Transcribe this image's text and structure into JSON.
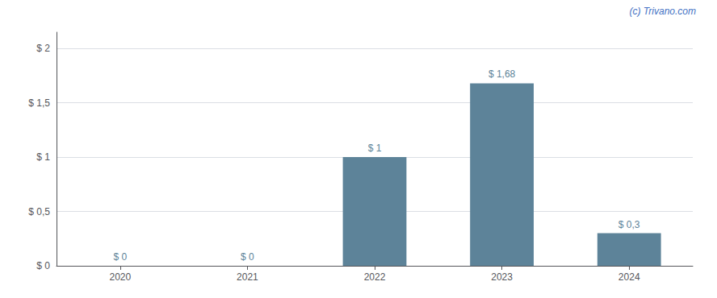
{
  "chart_data": {
    "type": "bar",
    "categories": [
      "2020",
      "2021",
      "2022",
      "2023",
      "2024"
    ],
    "values": [
      0,
      0,
      1.0,
      1.68,
      0.3
    ],
    "value_labels": [
      "$ 0",
      "$ 0",
      "$ 1",
      "$ 1,68",
      "$ 0,3"
    ],
    "data_labels": true,
    "color": "#5d8399",
    "ylim": [
      0,
      2.15
    ],
    "yticks": [
      {
        "value": 0,
        "label": "$ 0"
      },
      {
        "value": 0.5,
        "label": "$ 0,5"
      },
      {
        "value": 1.0,
        "label": "$ 1"
      },
      {
        "value": 1.5,
        "label": "$ 1,5"
      },
      {
        "value": 2.0,
        "label": "$ 2"
      }
    ],
    "grid": true,
    "annotations": [
      "(c) Trivano.com"
    ]
  }
}
